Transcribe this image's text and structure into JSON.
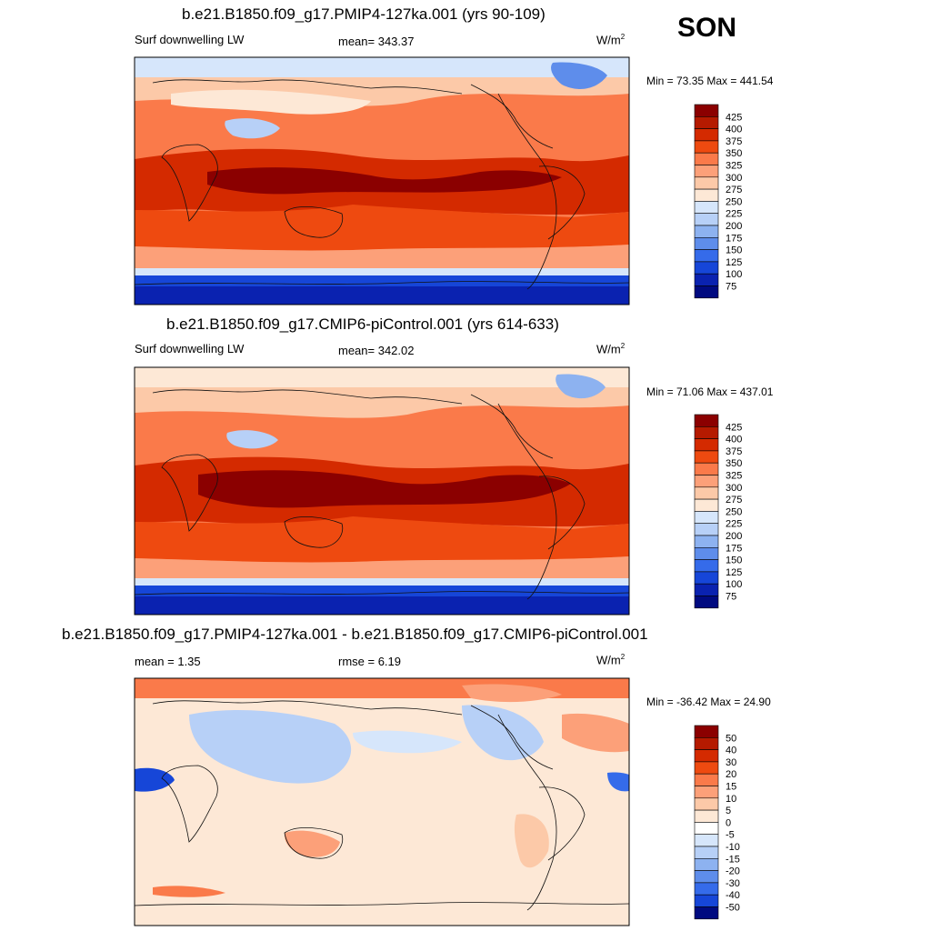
{
  "season": "SON",
  "panels": [
    {
      "title": "b.e21.B1850.f09_g17.PMIP4-127ka.001 (yrs 90-109)",
      "left_label": "Surf downwelling LW",
      "stat_label": "mean= 343.37",
      "units": "W/m",
      "units_sup": "2",
      "minmax": "Min =  73.35 Max = 441.54"
    },
    {
      "title": "b.e21.B1850.f09_g17.CMIP6-piControl.001 (yrs 614-633)",
      "left_label": "Surf downwelling LW",
      "stat_label": "mean= 342.02",
      "units": "W/m",
      "units_sup": "2",
      "minmax": "Min =  71.06 Max = 437.01"
    },
    {
      "title": "b.e21.B1850.f09_g17.PMIP4-127ka.001 - b.e21.B1850.f09_g17.CMIP6-piControl.001",
      "left_label": "mean =   1.35",
      "stat_label": "rmse =   6.19",
      "units": "W/m",
      "units_sup": "2",
      "minmax": "Min = -36.42 Max =  24.90"
    }
  ],
  "chart_data": [
    {
      "type": "heatmap",
      "variable": "Surf downwelling LW",
      "units": "W/m2",
      "mean": 343.37,
      "min": 73.35,
      "max": 441.54,
      "colorbar": {
        "ticks": [
          "425",
          "400",
          "375",
          "350",
          "325",
          "300",
          "275",
          "250",
          "225",
          "200",
          "175",
          "150",
          "125",
          "100",
          "75"
        ],
        "colors": [
          "#8b0000",
          "#b51a00",
          "#d42a00",
          "#ee4a10",
          "#fa7a4a",
          "#fca079",
          "#fcc9a8",
          "#fde8d6",
          "#d6e6fb",
          "#b7d0f7",
          "#8db2f0",
          "#5e8deb",
          "#356bea",
          "#1646d8",
          "#0a22b0",
          "#000a80"
        ]
      }
    },
    {
      "type": "heatmap",
      "variable": "Surf downwelling LW",
      "units": "W/m2",
      "mean": 342.02,
      "min": 71.06,
      "max": 437.01,
      "colorbar": {
        "ticks": [
          "425",
          "400",
          "375",
          "350",
          "325",
          "300",
          "275",
          "250",
          "225",
          "200",
          "175",
          "150",
          "125",
          "100",
          "75"
        ],
        "colors": [
          "#8b0000",
          "#b51a00",
          "#d42a00",
          "#ee4a10",
          "#fa7a4a",
          "#fca079",
          "#fcc9a8",
          "#fde8d6",
          "#d6e6fb",
          "#b7d0f7",
          "#8db2f0",
          "#5e8deb",
          "#356bea",
          "#1646d8",
          "#0a22b0",
          "#000a80"
        ]
      }
    },
    {
      "type": "heatmap",
      "variable": "difference",
      "units": "W/m2",
      "mean": 1.35,
      "rmse": 6.19,
      "min": -36.42,
      "max": 24.9,
      "colorbar": {
        "ticks": [
          "50",
          "40",
          "30",
          "20",
          "15",
          "10",
          "5",
          "0",
          "-5",
          "-10",
          "-15",
          "-20",
          "-30",
          "-40",
          "-50"
        ],
        "colors": [
          "#8b0000",
          "#b51a00",
          "#d42a00",
          "#ee4a10",
          "#fa7a4a",
          "#fca079",
          "#fcc9a8",
          "#fde8d6",
          "#ffffff",
          "#d6e6fb",
          "#b7d0f7",
          "#8db2f0",
          "#5e8deb",
          "#356bea",
          "#1646d8",
          "#000a80"
        ]
      }
    }
  ]
}
